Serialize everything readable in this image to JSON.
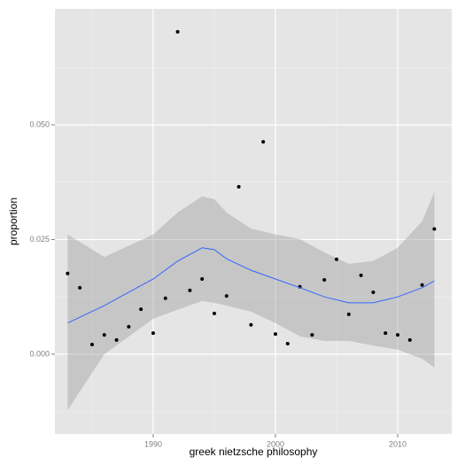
{
  "chart_data": {
    "type": "scatter",
    "x_label": "greek nietzsche philosophy",
    "y_label": "proportion",
    "xlim": [
      1981.96,
      2014.42
    ],
    "ylim": [
      -0.0174,
      0.0753
    ],
    "xticks": [
      1990,
      2000,
      2010
    ],
    "yticks": [
      {
        "value": 0,
        "label": "0.000"
      },
      {
        "value": 0.025,
        "label": "0.025"
      },
      {
        "value": 0.05,
        "label": "0.050"
      }
    ],
    "grid": true,
    "x": [
      1983,
      1984,
      1985,
      1986,
      1987,
      1988,
      1989,
      1990,
      1991,
      1992,
      1993,
      1994,
      1995,
      1996,
      1997,
      1998,
      1999,
      2000,
      2001,
      2002,
      2003,
      2004,
      2005,
      2006,
      2007,
      2008,
      2009,
      2010,
      2011,
      2012,
      2013
    ],
    "series": [
      {
        "color": "#000000",
        "values": [
          0.0176,
          0.0145,
          0.0021,
          0.0042,
          0.0031,
          0.006,
          0.0098,
          0.0046,
          0.0122,
          0.0703,
          0.0139,
          0.0164,
          0.0089,
          0.0127,
          0.0365,
          0.0064,
          0.0463,
          0.0044,
          0.0023,
          0.0147,
          0.0042,
          0.0162,
          0.0207,
          0.0087,
          0.0172,
          0.0135,
          0.0046,
          0.0042,
          0.0031,
          0.0151,
          0.0273
        ]
      }
    ],
    "smooth": {
      "color": "#3366ff",
      "band_color": "#999999",
      "x": [
        1983,
        1986,
        1990,
        1992,
        1994,
        1995,
        1996,
        1998,
        2000,
        2002,
        2004,
        2006,
        2008,
        2010,
        2012,
        2013
      ],
      "values": [
        0.0068,
        0.0106,
        0.0164,
        0.0203,
        0.0232,
        0.0228,
        0.0208,
        0.0183,
        0.0164,
        0.0145,
        0.0125,
        0.0112,
        0.0112,
        0.0125,
        0.0145,
        0.016
      ],
      "upper": [
        0.0261,
        0.0212,
        0.0261,
        0.0309,
        0.0344,
        0.0338,
        0.0309,
        0.0274,
        0.0261,
        0.0251,
        0.0222,
        0.0197,
        0.0203,
        0.0232,
        0.029,
        0.0353
      ],
      "lower": [
        -0.0122,
        0,
        0.0077,
        0.0097,
        0.0116,
        0.0112,
        0.0106,
        0.0093,
        0.0068,
        0.0039,
        0.0029,
        0.0029,
        0.0019,
        0.001,
        -0.001,
        -0.0029
      ]
    }
  }
}
